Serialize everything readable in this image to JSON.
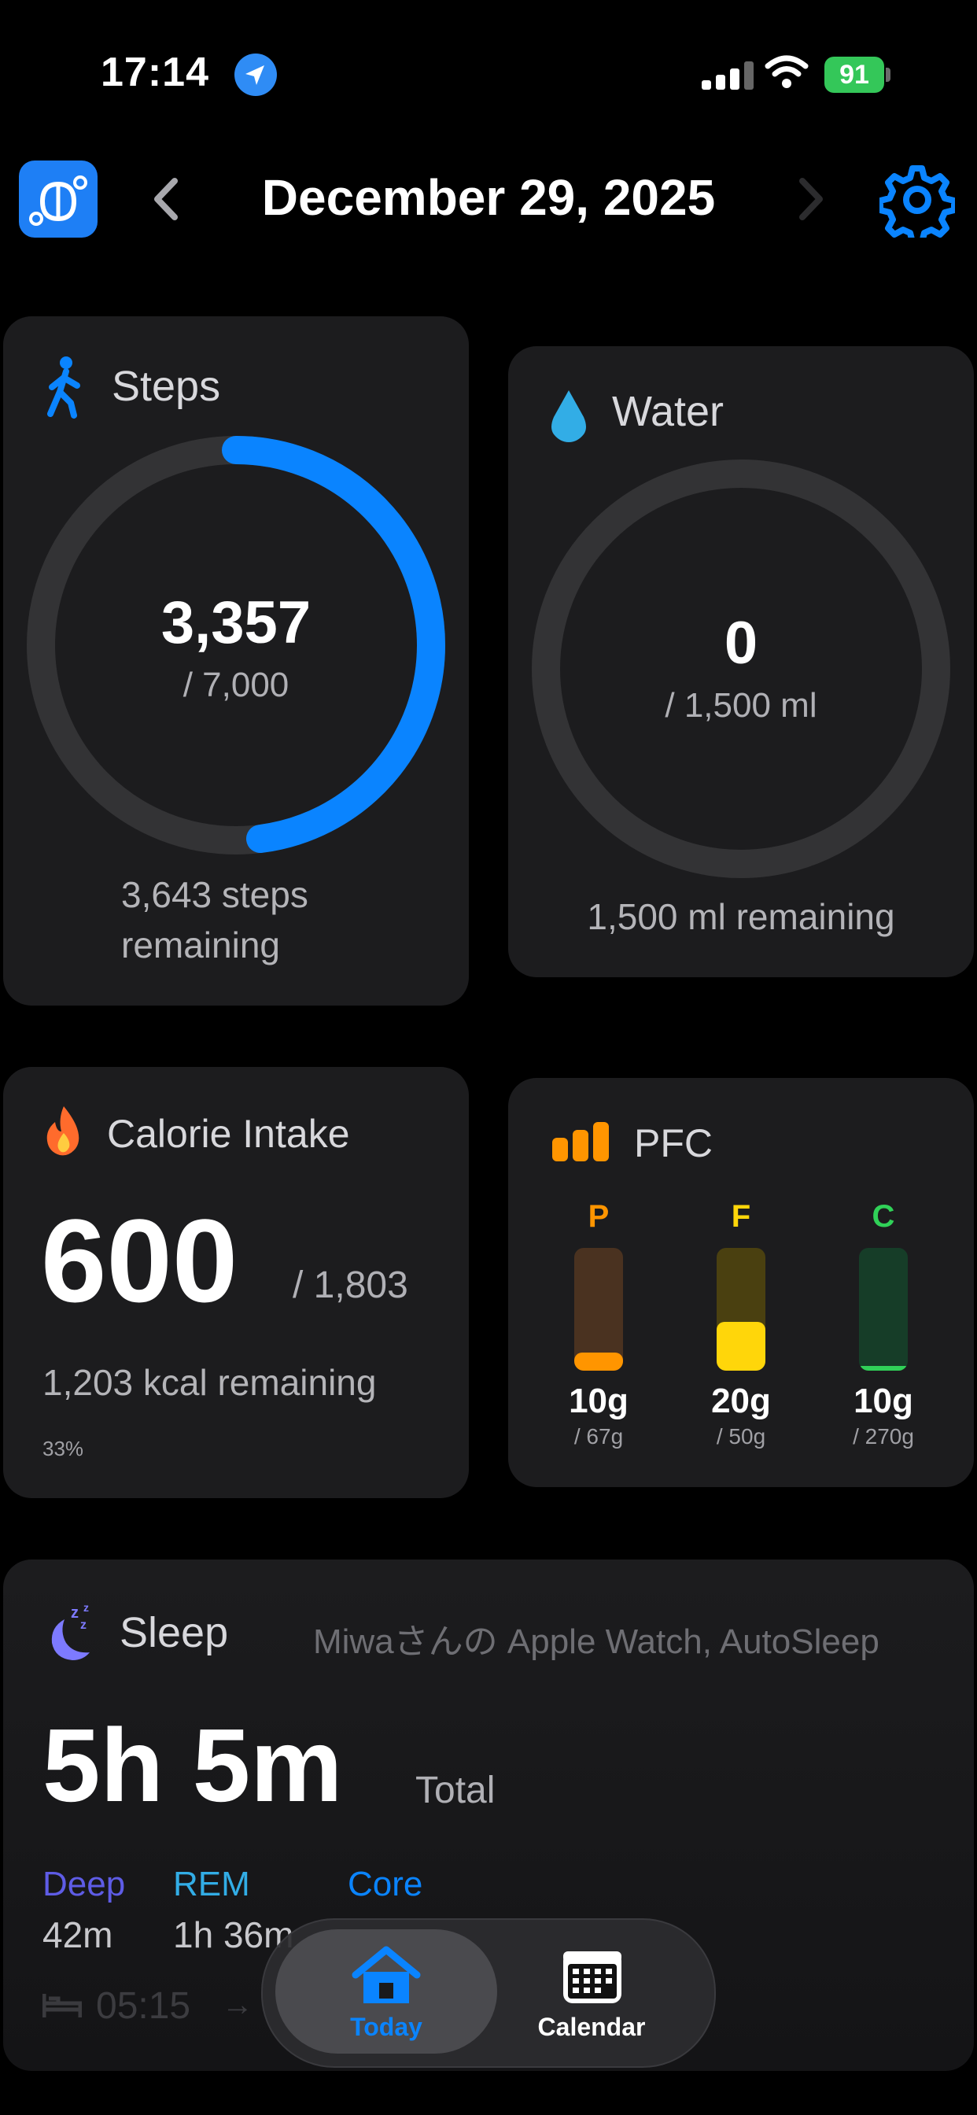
{
  "status_bar": {
    "time": "17:14",
    "battery": "91"
  },
  "header": {
    "date": "December 29, 2025"
  },
  "steps": {
    "title": "Steps",
    "value": "3,357",
    "goal": "/ 7,000",
    "remaining_line1": "3,643 steps",
    "remaining_line2": "remaining",
    "progress": 0.48,
    "color": "#0a84ff"
  },
  "water": {
    "title": "Water",
    "value": "0",
    "goal": "/ 1,500 ml",
    "remaining": "1,500 ml remaining",
    "progress": 0,
    "color": "#32ade6"
  },
  "calorie": {
    "title": "Calorie Intake",
    "value": "600",
    "goal": "/ 1,803",
    "remaining": "1,203 kcal remaining",
    "percent": "33%"
  },
  "pfc": {
    "title": "PFC",
    "items": [
      {
        "letter": "P",
        "value": "10g",
        "goal": "/ 67g",
        "fraction": 0.15,
        "color": "#ff9500",
        "track": "#4a3220"
      },
      {
        "letter": "F",
        "value": "20g",
        "goal": "/ 50g",
        "fraction": 0.4,
        "color": "#ffd60a",
        "track": "#4a4010"
      },
      {
        "letter": "C",
        "value": "10g",
        "goal": "/ 270g",
        "fraction": 0.04,
        "color": "#30d158",
        "track": "#163d28"
      }
    ]
  },
  "sleep": {
    "title": "Sleep",
    "source": "Miwaさんの Apple Watch, AutoSleep",
    "total": "5h 5m",
    "total_label": "Total",
    "stages": [
      {
        "label": "Deep",
        "value": "42m",
        "color": "#5e5ce6"
      },
      {
        "label": "REM",
        "value": "1h 36m",
        "color": "#32ade6"
      },
      {
        "label": "Core",
        "value": "",
        "color": "#0a84ff"
      }
    ],
    "bed_time": "05:15"
  },
  "tabbar": {
    "tabs": [
      {
        "label": "Today",
        "icon": "house-icon",
        "active": true
      },
      {
        "label": "Calendar",
        "icon": "calendar-icon",
        "active": false
      }
    ]
  }
}
